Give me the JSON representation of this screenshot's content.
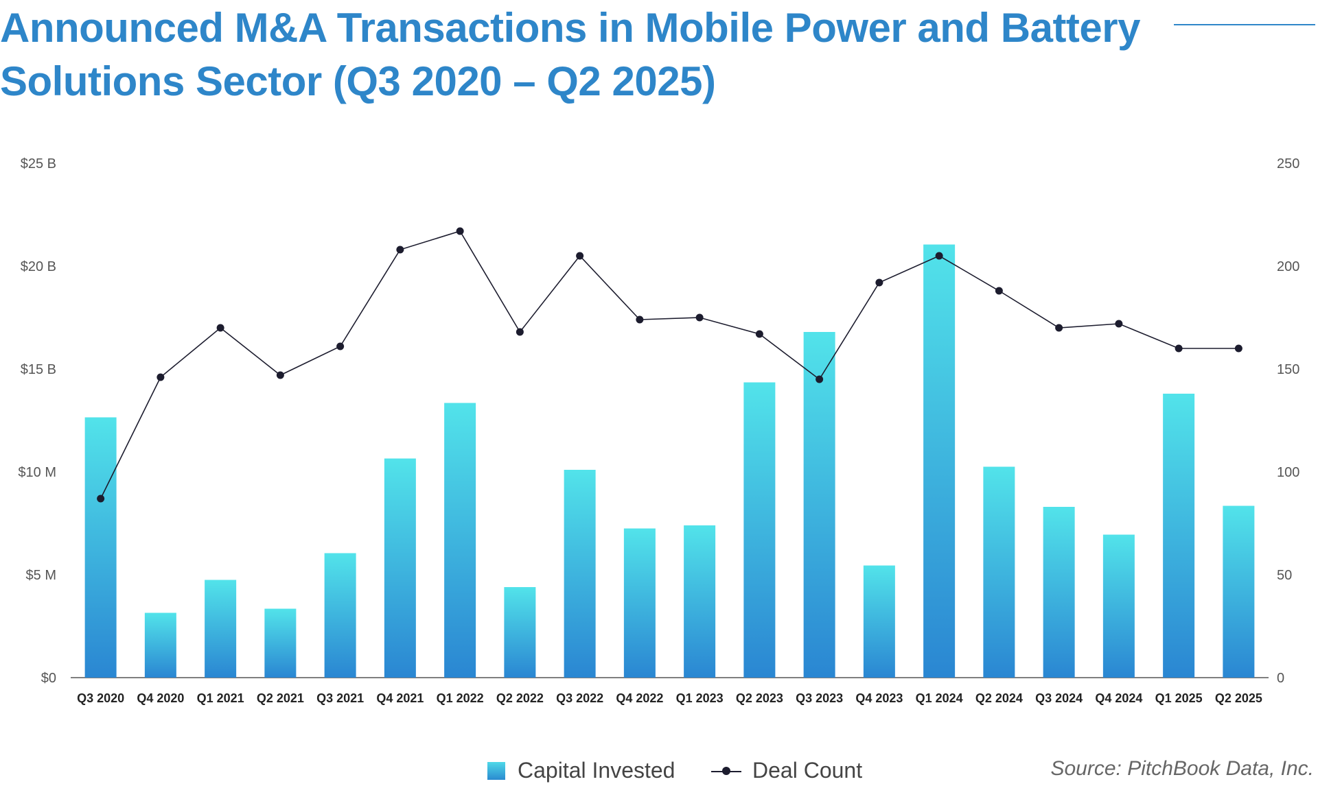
{
  "header": {
    "title": "Announced M&A Transactions in Mobile Power and Battery Solutions Sector (Q3 2020 – Q2 2025)"
  },
  "colors": {
    "title": "#2e86c9",
    "bar_top": "#52e3ea",
    "bar_bottom": "#2a86d2",
    "line": "#1c1c2e"
  },
  "legend": {
    "capital_label": "Capital Invested",
    "deal_label": "Deal Count"
  },
  "source": "Source: PitchBook Data, Inc.",
  "chart_data": {
    "type": "bar",
    "categories": [
      "Q3 2020",
      "Q4 2020",
      "Q1 2021",
      "Q2 2021",
      "Q3 2021",
      "Q4 2021",
      "Q1 2022",
      "Q2 2022",
      "Q3 2022",
      "Q4 2022",
      "Q1 2023",
      "Q2 2023",
      "Q3 2023",
      "Q4 2023",
      "Q1 2024",
      "Q2 2024",
      "Q3 2024",
      "Q4 2024",
      "Q1 2025",
      "Q2 2025"
    ],
    "left_axis_ticks": [
      "$0",
      "$5 M",
      "$10 M",
      "$15 B",
      "$20 B",
      "$25 B"
    ],
    "right_axis_ticks": [
      "0",
      "50",
      "100",
      "150",
      "200",
      "250"
    ],
    "ylim_left_tick_index": [
      0,
      5
    ],
    "ylim_right": [
      0,
      250
    ],
    "grid": false,
    "legend_position": "bottom",
    "series": [
      {
        "name": "Capital Invested",
        "type": "bar",
        "axis": "left",
        "values_in_tick_units": [
          2.53,
          0.63,
          0.95,
          0.67,
          1.21,
          2.13,
          2.67,
          0.88,
          2.02,
          1.45,
          1.48,
          2.87,
          3.36,
          1.09,
          4.21,
          2.05,
          1.66,
          1.39,
          2.76,
          1.67
        ]
      },
      {
        "name": "Deal Count",
        "type": "line",
        "axis": "right",
        "values": [
          87,
          146,
          170,
          147,
          161,
          208,
          217,
          168,
          205,
          174,
          175,
          167,
          145,
          192,
          205,
          188,
          170,
          172,
          160,
          160
        ]
      }
    ]
  }
}
